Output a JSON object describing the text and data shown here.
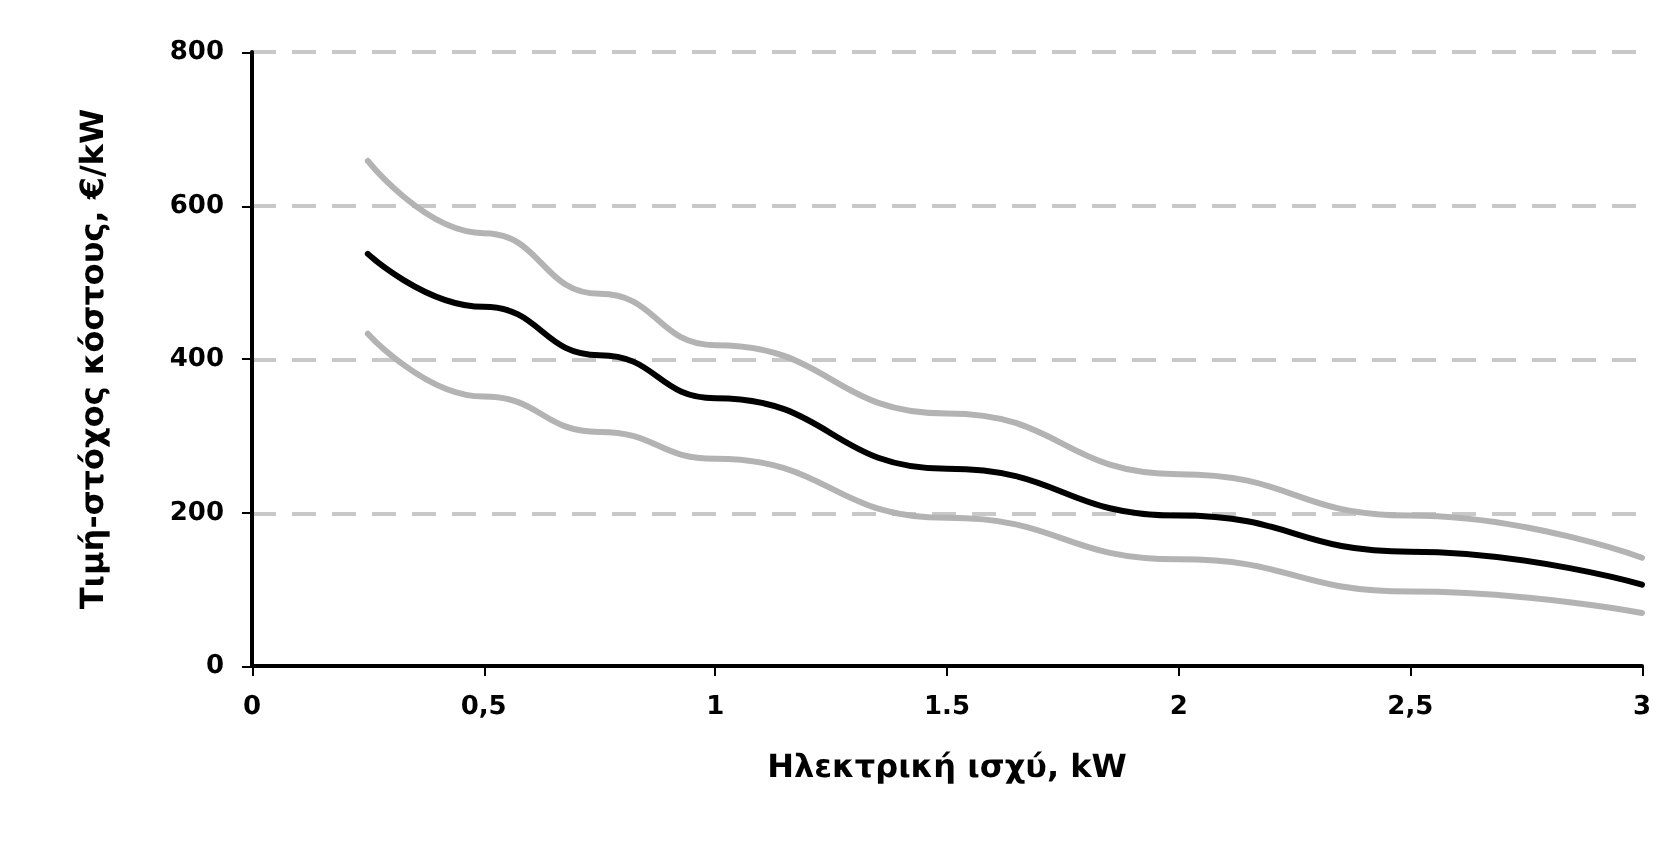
{
  "chart_data": {
    "type": "line",
    "xlabel": "Ηλεκτρική ισχύ, kW",
    "ylabel": "Τιμή-στόχος κόστους, €/kW",
    "x": [
      0.25,
      0.5,
      0.75,
      1,
      1.5,
      2,
      2.5,
      3
    ],
    "series": [
      {
        "color": "#b3b3b3",
        "values": [
          658,
          564,
          485,
          418,
          329,
          250,
          196,
          141
        ]
      },
      {
        "color": "#000000",
        "values": [
          537,
          468,
          405,
          349,
          257,
          196,
          149,
          106
        ]
      },
      {
        "color": "#b3b3b3",
        "values": [
          433,
          351,
          305,
          270,
          193,
          139,
          97,
          69
        ]
      }
    ],
    "xlim": [
      0,
      3
    ],
    "xticks": [
      0,
      {
        "value": 0.5,
        "label": "0,5"
      },
      1,
      1.5,
      2,
      {
        "value": 2.5,
        "label": "2,5"
      },
      3
    ],
    "ylim": [
      0,
      800
    ],
    "yticks": [
      0,
      200,
      400,
      600,
      800
    ],
    "grid": "y",
    "line_style": "solid",
    "marker": "none"
  }
}
